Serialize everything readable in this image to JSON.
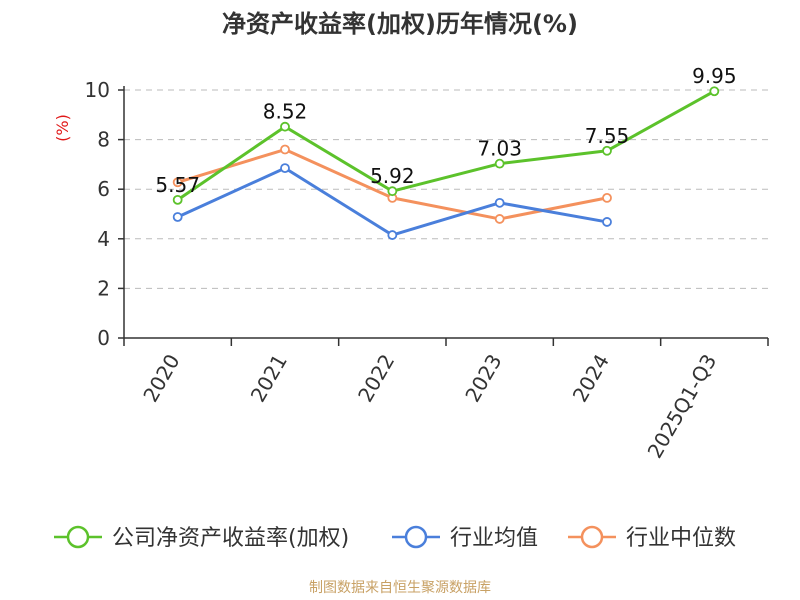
{
  "chart_data": {
    "type": "line",
    "title": "净资产收益率(加权)历年情况(%)",
    "ylabel": "(%)",
    "ylim": [
      0,
      10
    ],
    "yticks": [
      0,
      2,
      4,
      6,
      8,
      10
    ],
    "categories": [
      "2020",
      "2021",
      "2022",
      "2023",
      "2024",
      "2025Q1-Q3"
    ],
    "grid": true,
    "legend_position": "bottom",
    "series": [
      {
        "name": "公司净资产收益率(加权)",
        "color": "#5cc22b",
        "values": [
          5.57,
          8.52,
          5.92,
          7.03,
          7.55,
          9.95
        ],
        "show_labels": true
      },
      {
        "name": "行业均值",
        "color": "#4a7fdb",
        "values": [
          4.88,
          6.85,
          4.15,
          5.45,
          4.68,
          null
        ],
        "show_labels": false
      },
      {
        "name": "行业中位数",
        "color": "#f4915d",
        "values": [
          6.28,
          7.6,
          5.65,
          4.8,
          5.65,
          null
        ],
        "show_labels": false
      }
    ]
  },
  "footer": {
    "source": "制图数据来自恒生聚源数据库",
    "source_color": "#c8a165"
  },
  "colors": {
    "unit": "#e01818",
    "axis": "#333333",
    "grid": "#bbbbbb"
  }
}
